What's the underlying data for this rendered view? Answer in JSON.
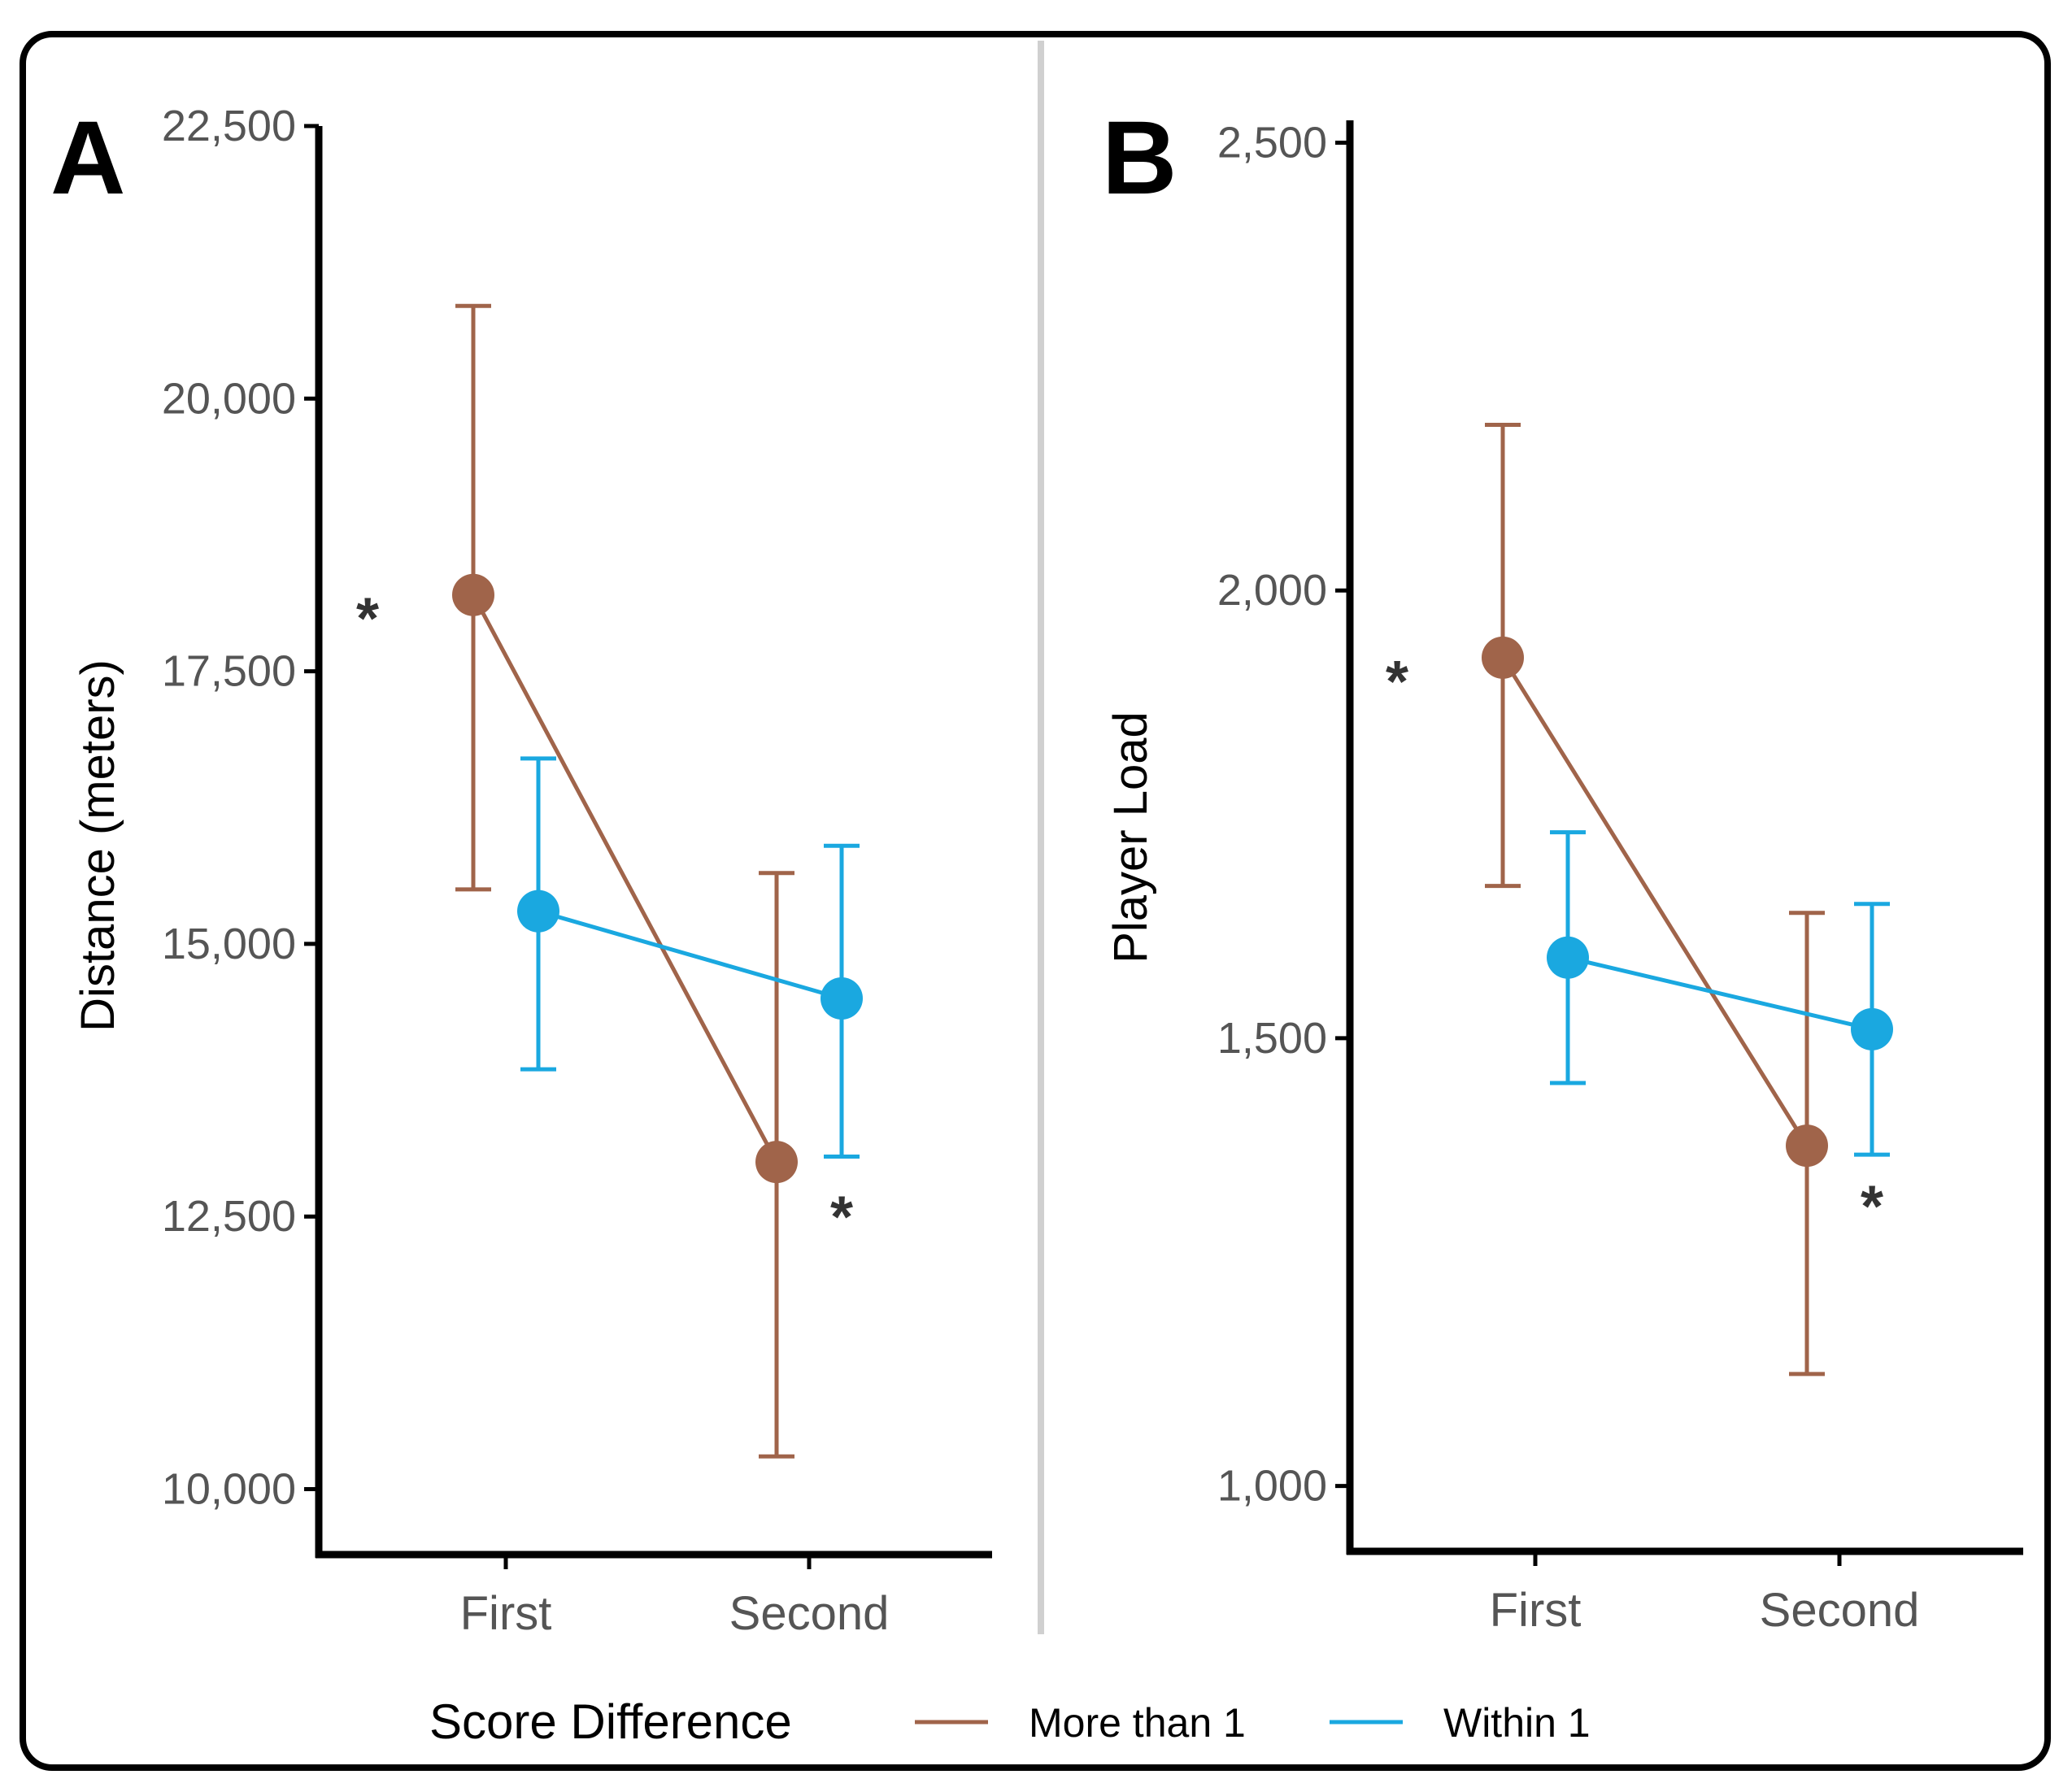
{
  "legend": {
    "title": "Score Difference",
    "entries": [
      {
        "label": "More than 1",
        "color": "#a0644a"
      },
      {
        "label": "Within 1",
        "color": "#1aa8e0"
      }
    ]
  },
  "chart_data": [
    {
      "type": "line",
      "panel_label": "A",
      "ylabel": "Distance (meters)",
      "categories": [
        "First",
        "Second"
      ],
      "ylim": [
        9400,
        22500
      ],
      "yticks": [
        10000,
        12500,
        15000,
        17500,
        20000,
        22500
      ],
      "ytick_labels": [
        "10,000",
        "12,500",
        "15,000",
        "17,500",
        "20,000",
        "22,500"
      ],
      "series": [
        {
          "name": "More than 1",
          "color": "#a0644a",
          "values": [
            18200,
            13000
          ],
          "error_low": [
            15500,
            10300
          ],
          "error_high": [
            20850,
            15650
          ]
        },
        {
          "name": "Within 1",
          "color": "#1aa8e0",
          "values": [
            15300,
            14500
          ],
          "error_low": [
            13850,
            13050
          ],
          "error_high": [
            16700,
            15900
          ]
        }
      ],
      "annotations": [
        {
          "text": "*",
          "category": 0,
          "value": 18200,
          "side": "left"
        },
        {
          "text": "*",
          "category": 1,
          "value": 12850,
          "side": "right"
        }
      ]
    },
    {
      "type": "line",
      "panel_label": "B",
      "ylabel": "Player Load",
      "categories": [
        "First",
        "Second"
      ],
      "ylim": [
        927,
        2525
      ],
      "yticks": [
        1000,
        1500,
        2000,
        2500
      ],
      "ytick_labels": [
        "1,000",
        "1,500",
        "2,000",
        "2,500"
      ],
      "series": [
        {
          "name": "More than 1",
          "color": "#a0644a",
          "values": [
            1925,
            1380
          ],
          "error_low": [
            1670,
            1125
          ],
          "error_high": [
            2185,
            1640
          ]
        },
        {
          "name": "Within 1",
          "color": "#1aa8e0",
          "values": [
            1590,
            1510
          ],
          "error_low": [
            1450,
            1370
          ],
          "error_high": [
            1730,
            1650
          ]
        }
      ],
      "annotations": [
        {
          "text": "*",
          "category": 0,
          "value": 1925,
          "side": "left"
        },
        {
          "text": "*",
          "category": 1,
          "value": 1355,
          "side": "right"
        }
      ]
    }
  ]
}
